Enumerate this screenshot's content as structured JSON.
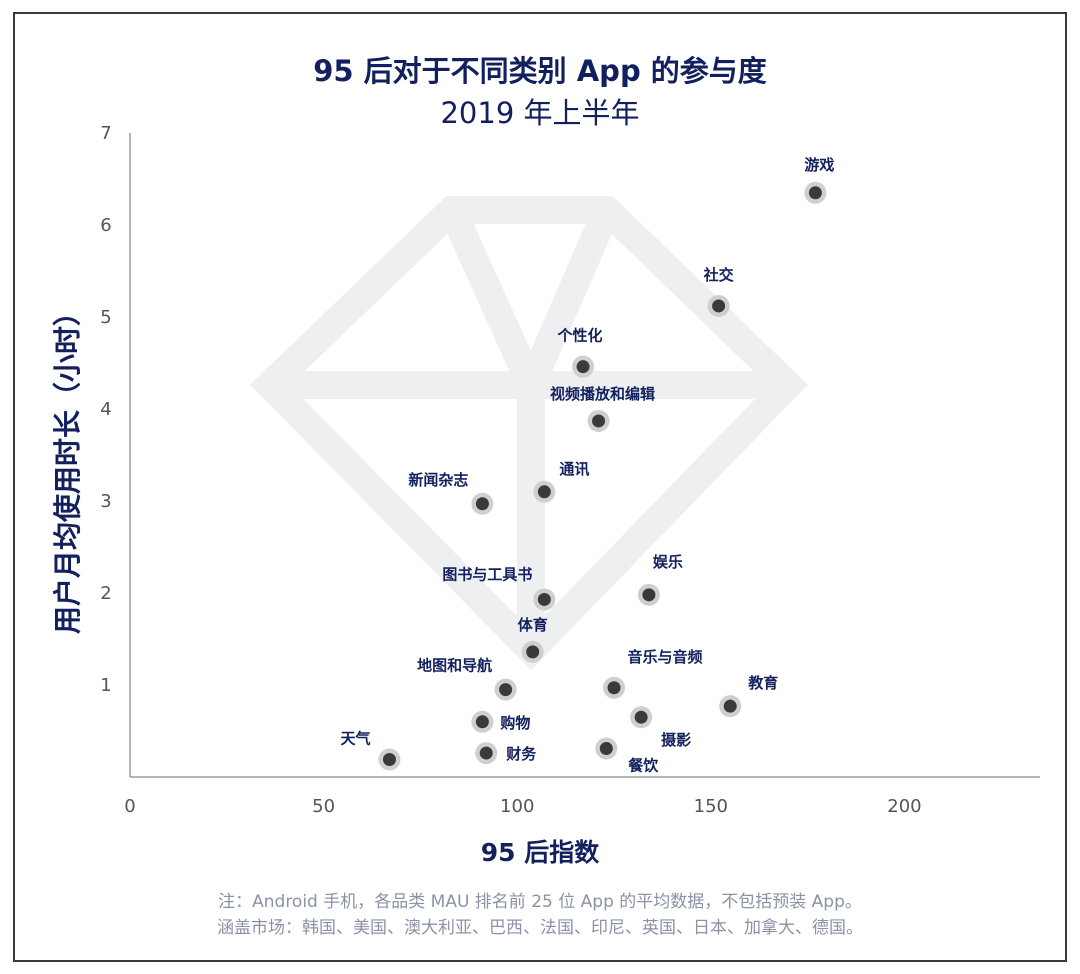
{
  "title": "95 后对于不同类别 App 的参与度",
  "subtitle": "2019 年上半年",
  "ylabel": "用户月均使用时长（小时）",
  "xlabel": "95 后指数",
  "notes": [
    "注：Android 手机，各品类 MAU 排名前 25 位 App 的平均数据，不包括预装 App。",
    "涵盖市场：韩国、美国、澳大利亚、巴西、法国、印尼、英国、日本、加拿大、德国。"
  ],
  "colors": {
    "title": "#13205e",
    "point": "#3a3a3a",
    "halo": "#cfcfcf",
    "axis": "#9a9a9a",
    "tick": "#555555",
    "note": "#8a93a6",
    "watermark": "#eeeff1"
  },
  "chart_data": {
    "type": "scatter",
    "xlim": [
      0,
      235
    ],
    "ylim": [
      0,
      7
    ],
    "xticks": [
      0,
      50,
      100,
      150,
      200
    ],
    "yticks": [
      1,
      2,
      3,
      4,
      5,
      6,
      7
    ],
    "grid": false,
    "points": [
      {
        "label": "游戏",
        "x": 177,
        "y": 6.35
      },
      {
        "label": "社交",
        "x": 152,
        "y": 5.12
      },
      {
        "label": "个性化",
        "x": 117,
        "y": 4.46
      },
      {
        "label": "视频播放和编辑",
        "x": 121,
        "y": 3.87
      },
      {
        "label": "通讯",
        "x": 107,
        "y": 3.1
      },
      {
        "label": "新闻杂志",
        "x": 91,
        "y": 2.97
      },
      {
        "label": "图书与工具书",
        "x": 107,
        "y": 1.93
      },
      {
        "label": "娱乐",
        "x": 134,
        "y": 1.98
      },
      {
        "label": "体育",
        "x": 104,
        "y": 1.36
      },
      {
        "label": "地图和导航",
        "x": 97,
        "y": 0.95
      },
      {
        "label": "音乐与音频",
        "x": 125,
        "y": 0.97
      },
      {
        "label": "教育",
        "x": 155,
        "y": 0.77
      },
      {
        "label": "购物",
        "x": 91,
        "y": 0.6
      },
      {
        "label": "摄影",
        "x": 132,
        "y": 0.65
      },
      {
        "label": "天气",
        "x": 67,
        "y": 0.19
      },
      {
        "label": "财务",
        "x": 92,
        "y": 0.26
      },
      {
        "label": "餐饮",
        "x": 123,
        "y": 0.31
      }
    ]
  }
}
